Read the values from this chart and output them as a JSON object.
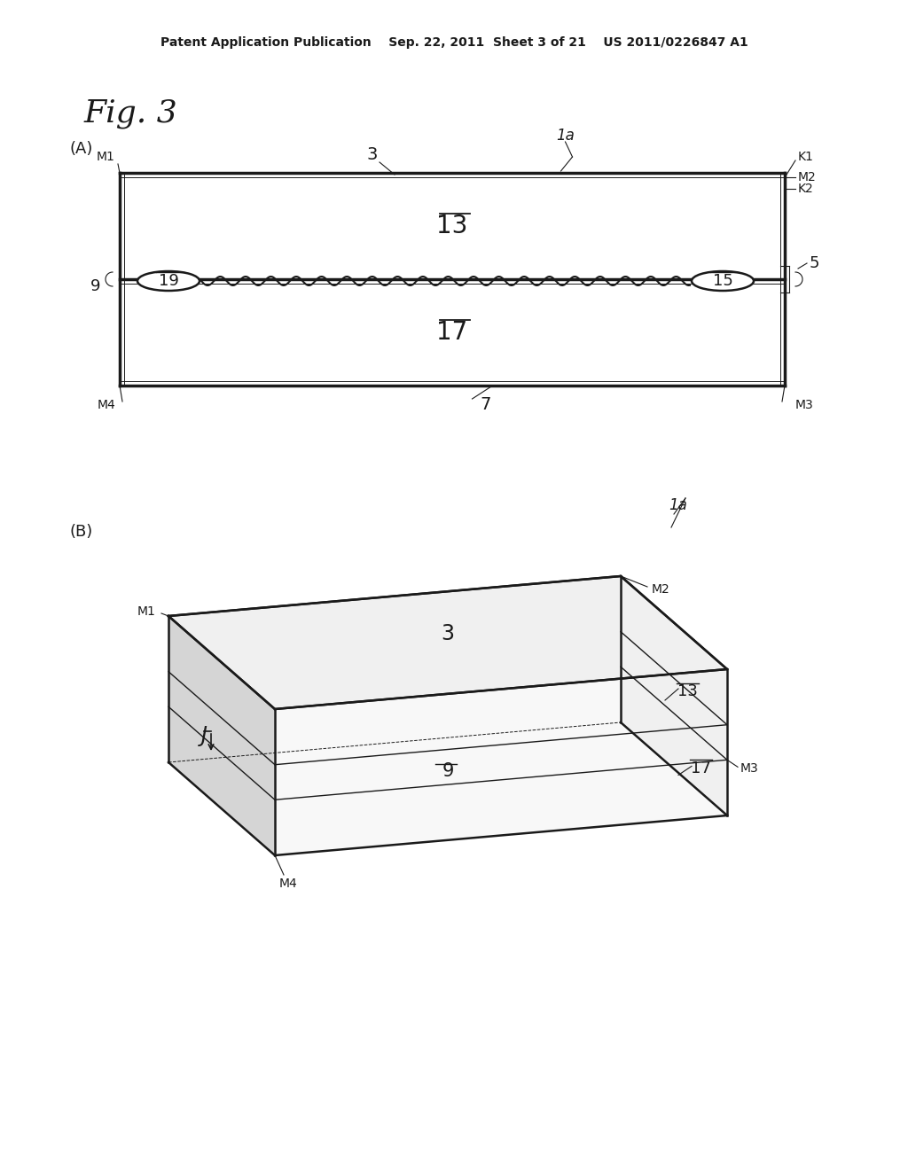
{
  "background_color": "#ffffff",
  "header_text": "Patent Application Publication    Sep. 22, 2011  Sheet 3 of 21    US 2011/0226847 A1",
  "fig_label": "Fig. 3",
  "section_A_label": "(A)",
  "section_B_label": "(B)"
}
